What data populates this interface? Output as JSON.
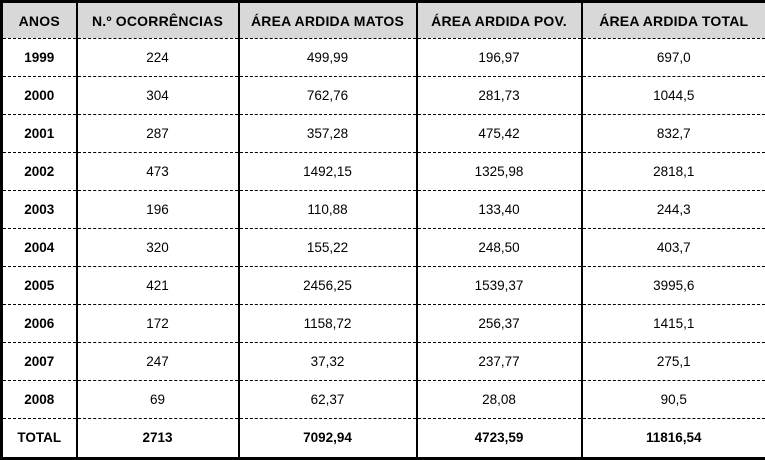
{
  "table": {
    "columns": [
      "ANOS",
      "N.º OCORRÊNCIAS",
      "ÁREA ARDIDA MATOS",
      "ÁREA ARDIDA POV.",
      "ÁREA ARDIDA TOTAL"
    ],
    "rows": [
      {
        "cells": [
          "1999",
          "224",
          "499,99",
          "196,97",
          "697,0"
        ],
        "total": false
      },
      {
        "cells": [
          "2000",
          "304",
          "762,76",
          "281,73",
          "1044,5"
        ],
        "total": false
      },
      {
        "cells": [
          "2001",
          "287",
          "357,28",
          "475,42",
          "832,7"
        ],
        "total": false
      },
      {
        "cells": [
          "2002",
          "473",
          "1492,15",
          "1325,98",
          "2818,1"
        ],
        "total": false
      },
      {
        "cells": [
          "2003",
          "196",
          "110,88",
          "133,40",
          "244,3"
        ],
        "total": false
      },
      {
        "cells": [
          "2004",
          "320",
          "155,22",
          "248,50",
          "403,7"
        ],
        "total": false
      },
      {
        "cells": [
          "2005",
          "421",
          "2456,25",
          "1539,37",
          "3995,6"
        ],
        "total": false
      },
      {
        "cells": [
          "2006",
          "172",
          "1158,72",
          "256,37",
          "1415,1"
        ],
        "total": false
      },
      {
        "cells": [
          "2007",
          "247",
          "37,32",
          "237,77",
          "275,1"
        ],
        "total": false
      },
      {
        "cells": [
          "2008",
          "69",
          "62,37",
          "28,08",
          "90,5"
        ],
        "total": false
      },
      {
        "cells": [
          "TOTAL",
          "2713",
          "7092,94",
          "4723,59",
          "11816,54"
        ],
        "total": true
      }
    ],
    "colors": {
      "header_bg": "#d8d8d8",
      "border": "#000000",
      "row_bg": "#ffffff"
    }
  },
  "chart_data": {
    "type": "table",
    "title": "",
    "columns": [
      "ANOS",
      "N.º OCORRÊNCIAS",
      "ÁREA ARDIDA MATOS",
      "ÁREA ARDIDA POV.",
      "ÁREA ARDIDA TOTAL"
    ],
    "rows": [
      [
        "1999",
        224,
        499.99,
        196.97,
        697.0
      ],
      [
        "2000",
        304,
        762.76,
        281.73,
        1044.5
      ],
      [
        "2001",
        287,
        357.28,
        475.42,
        832.7
      ],
      [
        "2002",
        473,
        1492.15,
        1325.98,
        2818.1
      ],
      [
        "2003",
        196,
        110.88,
        133.4,
        244.3
      ],
      [
        "2004",
        320,
        155.22,
        248.5,
        403.7
      ],
      [
        "2005",
        421,
        2456.25,
        1539.37,
        3995.6
      ],
      [
        "2006",
        172,
        1158.72,
        256.37,
        1415.1
      ],
      [
        "2007",
        247,
        37.32,
        237.77,
        275.1
      ],
      [
        "2008",
        69,
        62.37,
        28.08,
        90.5
      ],
      [
        "TOTAL",
        2713,
        7092.94,
        4723.59,
        11816.54
      ]
    ]
  }
}
